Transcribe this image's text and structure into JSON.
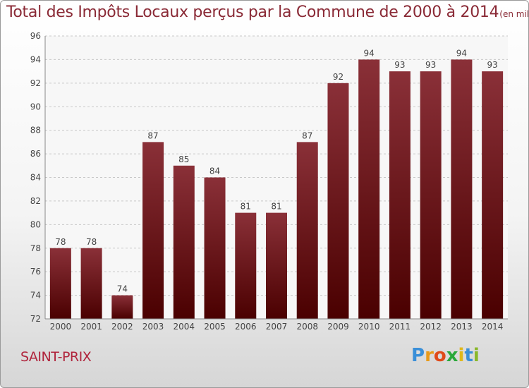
{
  "chart_data": {
    "type": "bar",
    "title": "Total des Impôts Locaux perçus par la Commune de 2000 à 2014",
    "subtitle": "(en milliers d'€)",
    "categories": [
      "2000",
      "2001",
      "2002",
      "2003",
      "2004",
      "2005",
      "2006",
      "2007",
      "2008",
      "2009",
      "2010",
      "2011",
      "2012",
      "2013",
      "2014"
    ],
    "values": [
      78,
      78,
      74,
      87,
      85,
      84,
      81,
      81,
      87,
      92,
      94,
      93,
      93,
      94,
      93
    ],
    "ylim": [
      72,
      96
    ],
    "yticks": [
      72,
      74,
      76,
      78,
      80,
      82,
      84,
      86,
      88,
      90,
      92,
      94,
      96
    ],
    "grid": true,
    "bar_color_top": "#8a3038",
    "bar_color_bottom": "#4a0000"
  },
  "commune": "SAINT-PRIX",
  "logo": {
    "letters": [
      "P",
      "r",
      "o",
      "x",
      "i",
      "t",
      "i"
    ],
    "colors": [
      "#3a8fd8",
      "#e89a1a",
      "#e04a1a",
      "#2aa83a",
      "#e0b81a",
      "#3a8fd8",
      "#8ab82a"
    ]
  }
}
